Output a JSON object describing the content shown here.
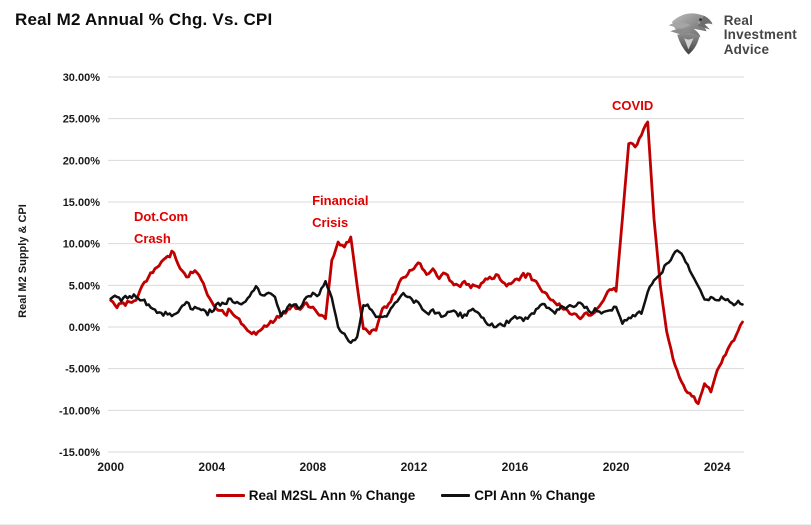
{
  "header": {
    "title": "Real M2 Annual % Chg. Vs. CPI",
    "logo": {
      "icon": "eagle-icon",
      "lines": [
        "Real",
        "Investment",
        "Advice"
      ]
    }
  },
  "chart_data": {
    "type": "line",
    "title": "Real M2 Annual % Chg. Vs. CPI",
    "ylabel": "Real M2 Supply & CPI",
    "ylim": [
      -15,
      30
    ],
    "ytick_step": 5,
    "ytick_decimals": 2,
    "ytick_suffix": "%",
    "xticks": [
      2000,
      2004,
      2008,
      2012,
      2016,
      2020,
      2024
    ],
    "x": {
      "start": 2000,
      "step_years": 0.25,
      "end": 2025
    },
    "grid": "horizontal",
    "gridline_color": "#d9d9d9",
    "legend_position": "bottom",
    "series": [
      {
        "name": "Real M2SL Ann % Change",
        "color": "#c00000",
        "values": [
          3.2,
          2.3,
          2.9,
          3.0,
          3.2,
          5.0,
          6.0,
          7.0,
          7.8,
          8.5,
          8.9,
          7.0,
          6.0,
          6.5,
          6.2,
          4.5,
          3.0,
          2.0,
          1.6,
          1.9,
          1.1,
          0.2,
          -0.6,
          -0.9,
          -0.2,
          0.3,
          0.8,
          1.6,
          2.1,
          2.6,
          2.1,
          2.9,
          2.4,
          1.4,
          1.0,
          8.0,
          10.2,
          9.6,
          10.8,
          5.0,
          -0.2,
          -0.8,
          -0.4,
          2.2,
          2.8,
          4.0,
          5.8,
          6.3,
          7.0,
          7.6,
          6.3,
          7.0,
          5.8,
          6.4,
          5.4,
          5.0,
          5.5,
          4.7,
          4.9,
          5.4,
          6.0,
          6.3,
          5.4,
          5.2,
          5.7,
          6.1,
          6.4,
          5.6,
          4.6,
          4.0,
          3.2,
          2.8,
          2.2,
          1.5,
          1.2,
          1.6,
          1.4,
          2.2,
          3.2,
          4.5,
          4.3,
          13.0,
          22.0,
          21.6,
          23.0,
          24.6,
          13.0,
          5.0,
          -0.5,
          -3.8,
          -6.0,
          -7.6,
          -8.3,
          -9.2,
          -6.8,
          -7.8,
          -5.2,
          -3.6,
          -2.2,
          -1.0,
          0.6
        ]
      },
      {
        "name": "CPI Ann % Change",
        "color": "#111111",
        "values": [
          3.4,
          3.6,
          3.5,
          3.7,
          3.6,
          3.2,
          2.7,
          2.1,
          1.7,
          1.5,
          1.5,
          2.2,
          3.0,
          2.1,
          2.2,
          1.9,
          1.8,
          2.9,
          2.8,
          3.4,
          3.0,
          2.9,
          3.7,
          4.9,
          3.8,
          4.1,
          3.6,
          1.3,
          2.4,
          2.7,
          2.3,
          3.6,
          4.1,
          3.9,
          5.5,
          3.5,
          0.0,
          -0.8,
          -1.9,
          -1.2,
          2.6,
          2.2,
          1.2,
          1.2,
          1.7,
          2.9,
          3.8,
          3.6,
          2.9,
          2.6,
          1.7,
          2.1,
          1.7,
          1.4,
          1.9,
          1.3,
          1.5,
          2.0,
          1.8,
          1.1,
          0.2,
          0.0,
          0.2,
          0.5,
          1.3,
          1.1,
          1.0,
          1.6,
          2.6,
          2.3,
          1.9,
          2.1,
          2.2,
          2.5,
          2.9,
          2.3,
          1.7,
          1.9,
          1.8,
          2.0,
          2.4,
          0.4,
          1.1,
          1.3,
          1.6,
          4.2,
          5.6,
          6.3,
          7.6,
          8.6,
          9.0,
          7.8,
          6.3,
          4.9,
          3.3,
          3.6,
          3.2,
          3.4,
          3.0,
          2.8,
          2.7
        ]
      }
    ],
    "annotations": [
      {
        "name": "dotcom-crash",
        "text": "Dot.Com\nCrash",
        "year": 2000.92,
        "value": 14.5,
        "color": "#e00000"
      },
      {
        "name": "financial-crisis",
        "text": "Financial\nCrisis",
        "year": 2007.97,
        "value": 16.4,
        "color": "#e00000"
      },
      {
        "name": "covid",
        "text": "COVID",
        "year": 2019.84,
        "value": 27.8,
        "color": "#e00000"
      }
    ]
  }
}
